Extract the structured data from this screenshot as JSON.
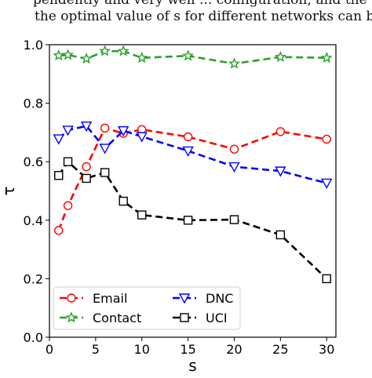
{
  "caption": {
    "line1": "pendently and very well ... configuration; and the optimal values",
    "line2": "the optimal value of s for different networks can be selected by"
  },
  "chart_data": {
    "type": "line",
    "title": "",
    "xlabel": "s",
    "ylabel": "τ",
    "xlim": [
      0,
      31
    ],
    "ylim": [
      0.0,
      1.0
    ],
    "xticks": [
      0,
      5,
      10,
      15,
      20,
      25,
      30
    ],
    "yticks": [
      0.0,
      0.2,
      0.4,
      0.6,
      0.8,
      1.0
    ],
    "grid": false,
    "legend_position": "bottom-left",
    "series": [
      {
        "name": "Email",
        "color": "#ff0000",
        "marker": "circle",
        "x": [
          1,
          2,
          4,
          6,
          8,
          10,
          15,
          20,
          25,
          30
        ],
        "y": [
          0.365,
          0.45,
          0.583,
          0.715,
          0.697,
          0.71,
          0.685,
          0.643,
          0.703,
          0.677
        ]
      },
      {
        "name": "DNC",
        "color": "#0000ff",
        "marker": "triangle-down",
        "x": [
          1,
          2,
          4,
          6,
          8,
          10,
          15,
          20,
          25,
          30
        ],
        "y": [
          0.678,
          0.708,
          0.722,
          0.646,
          0.706,
          0.686,
          0.637,
          0.583,
          0.568,
          0.527
        ]
      },
      {
        "name": "Contact",
        "color": "#2ca02c",
        "marker": "star",
        "x": [
          1,
          2,
          4,
          6,
          8,
          10,
          15,
          20,
          25,
          30
        ],
        "y": [
          0.963,
          0.965,
          0.952,
          0.978,
          0.978,
          0.955,
          0.962,
          0.935,
          0.958,
          0.955
        ]
      },
      {
        "name": "UCI",
        "color": "#000000",
        "marker": "square",
        "x": [
          1,
          2,
          4,
          6,
          8,
          10,
          15,
          20,
          25,
          30
        ],
        "y": [
          0.553,
          0.6,
          0.543,
          0.563,
          0.465,
          0.418,
          0.4,
          0.402,
          0.35,
          0.2
        ]
      }
    ]
  }
}
